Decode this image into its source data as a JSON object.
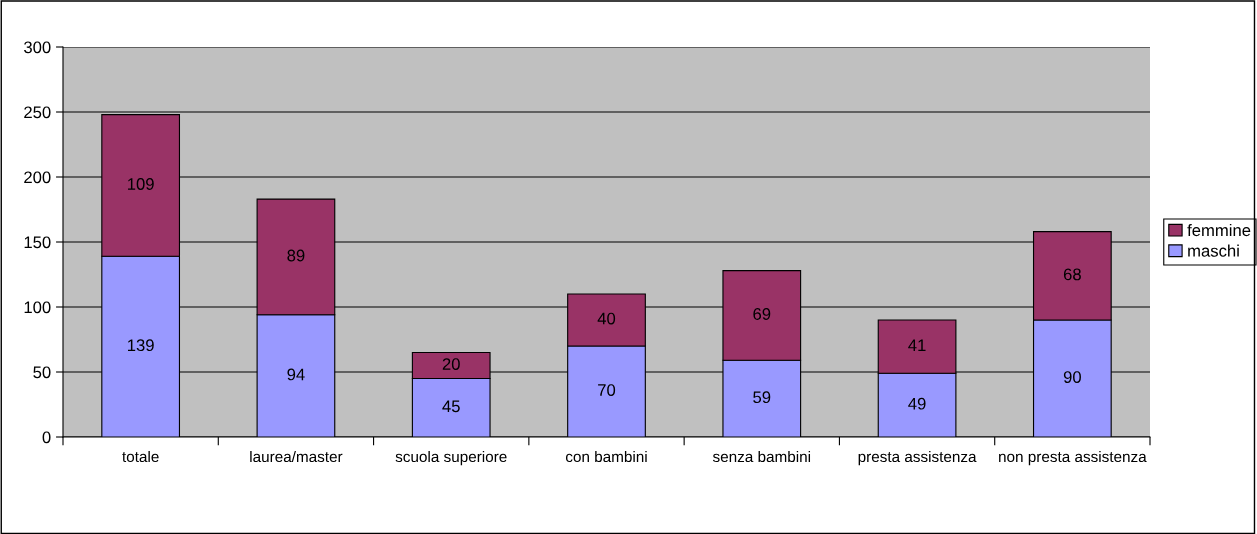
{
  "chart_data": {
    "type": "bar",
    "stacked": true,
    "categories": [
      "totale",
      "laurea/master",
      "scuola superiore",
      "con bambini",
      "senza bambini",
      "presta assistenza",
      "non presta assistenza"
    ],
    "series": [
      {
        "name": "maschi",
        "color": "#9999ff",
        "values": [
          139,
          94,
          45,
          70,
          59,
          49,
          90
        ]
      },
      {
        "name": "femmine",
        "color": "#993366",
        "values": [
          109,
          89,
          20,
          40,
          69,
          41,
          68
        ]
      }
    ],
    "ylim": [
      0,
      300
    ],
    "yticks": [
      0,
      50,
      100,
      150,
      200,
      250,
      300
    ],
    "grid": "y",
    "legend": "right",
    "data_labels": true
  }
}
